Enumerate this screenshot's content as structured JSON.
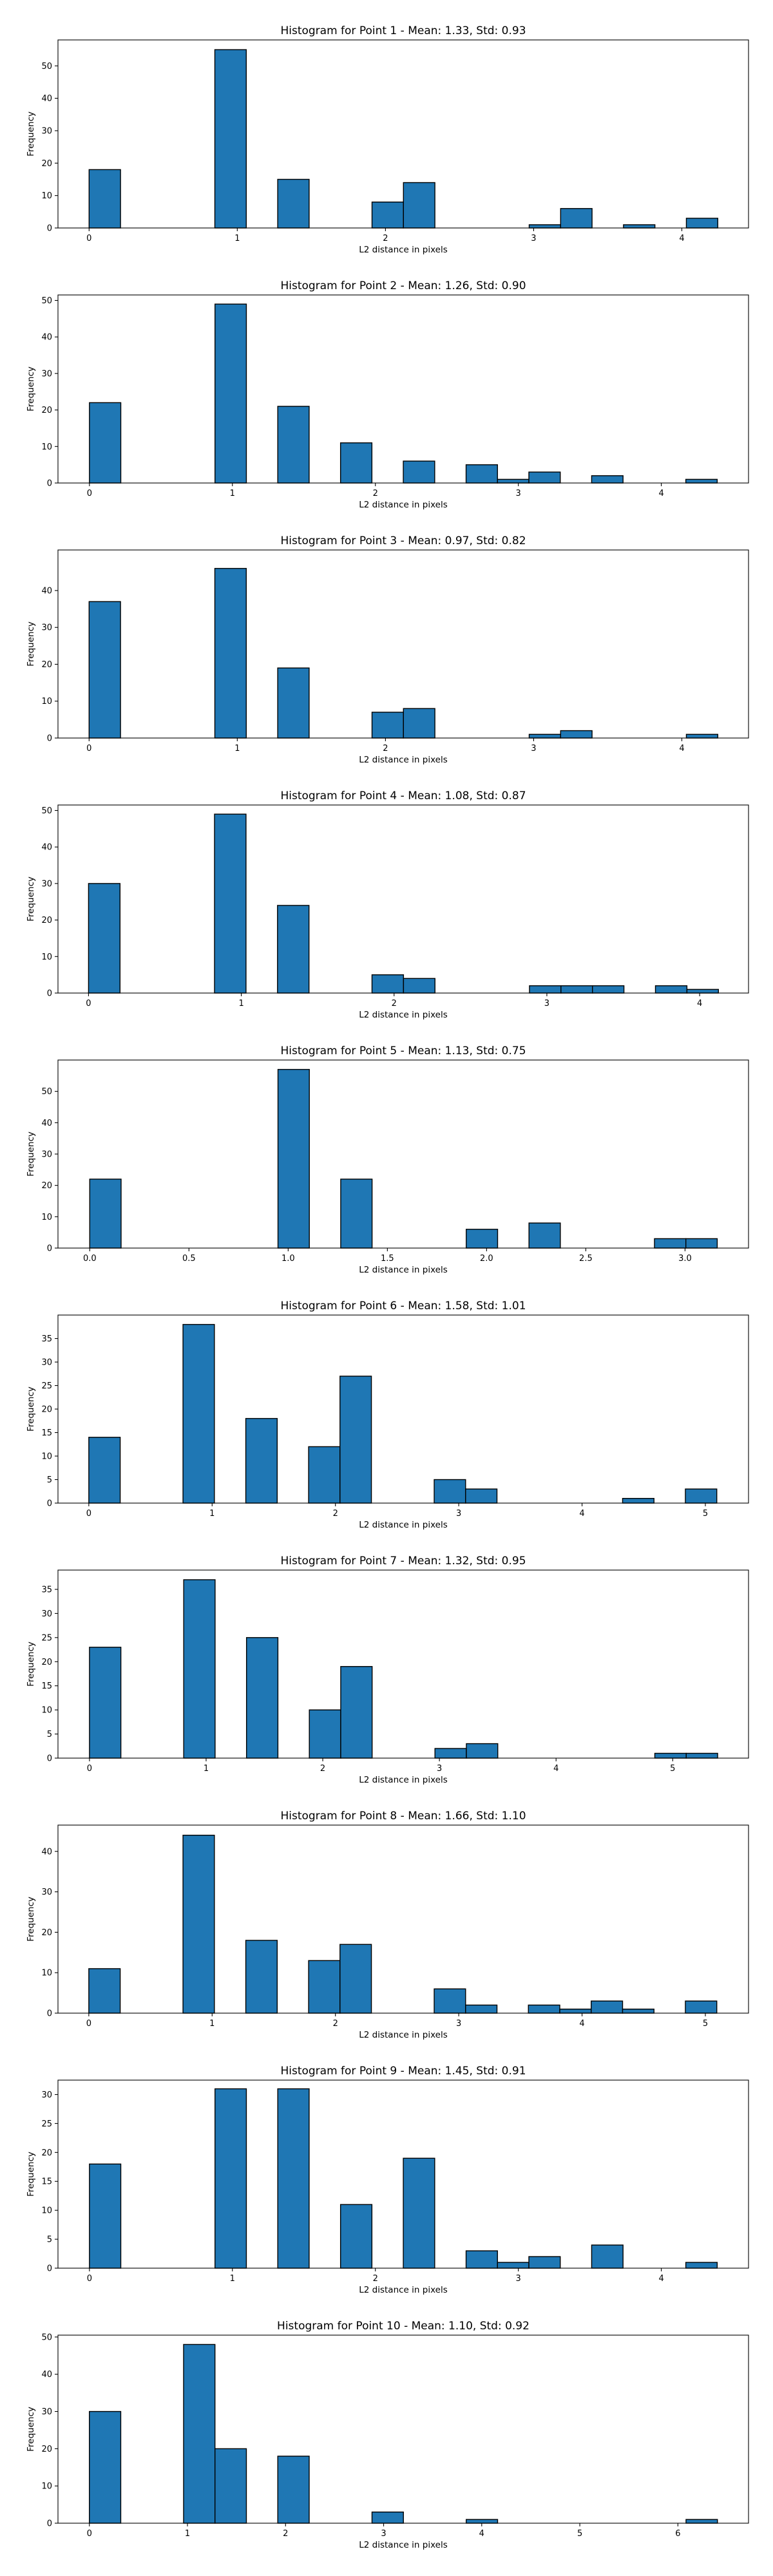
{
  "chart_data": [
    {
      "type": "bar",
      "title": "Histogram for Point 1 - Mean: 1.33, Std: 0.93",
      "xlabel": "L2 distance in pixels",
      "ylabel": "Frequency",
      "xlim": [
        -0.21,
        4.45
      ],
      "ylim": [
        0,
        58
      ],
      "xticks": [
        0,
        1,
        2,
        3,
        4
      ],
      "xtick_labels": [
        "0",
        "1",
        "2",
        "3",
        "4"
      ],
      "yticks": [
        0,
        10,
        20,
        30,
        40,
        50
      ],
      "bin_edges": [
        0,
        0.2121,
        0.4243,
        0.6364,
        0.8485,
        1.0607,
        1.2728,
        1.4849,
        1.6971,
        1.9092,
        2.1213,
        2.3335,
        2.5456,
        2.7577,
        2.9698,
        3.182,
        3.3941,
        3.6062,
        3.8184,
        4.0305,
        4.2426
      ],
      "values": [
        18,
        0,
        0,
        0,
        55,
        0,
        15,
        0,
        0,
        8,
        14,
        0,
        0,
        0,
        1,
        6,
        0,
        1,
        0,
        3
      ]
    },
    {
      "type": "bar",
      "title": "Histogram for Point 2 - Mean: 1.26, Std: 0.90",
      "xlabel": "L2 distance in pixels",
      "ylabel": "Frequency",
      "xlim": [
        -0.22,
        4.61
      ],
      "ylim": [
        0,
        51.5
      ],
      "xticks": [
        0,
        1,
        2,
        3,
        4
      ],
      "xtick_labels": [
        "0",
        "1",
        "2",
        "3",
        "4"
      ],
      "yticks": [
        0,
        10,
        20,
        30,
        40,
        50
      ],
      "bin_edges": [
        0,
        0.2195,
        0.4391,
        0.6586,
        0.8782,
        1.0977,
        1.3173,
        1.5368,
        1.7564,
        1.9759,
        2.1954,
        2.415,
        2.6345,
        2.8541,
        3.0736,
        3.2932,
        3.5127,
        3.7323,
        3.9518,
        4.1714,
        4.3909
      ],
      "values": [
        22,
        0,
        0,
        0,
        49,
        0,
        21,
        0,
        11,
        0,
        6,
        0,
        5,
        1,
        3,
        0,
        2,
        0,
        0,
        1
      ]
    },
    {
      "type": "bar",
      "title": "Histogram for Point 3 - Mean: 0.97, Std: 0.82",
      "xlabel": "L2 distance in pixels",
      "ylabel": "Frequency",
      "xlim": [
        -0.21,
        4.45
      ],
      "ylim": [
        0,
        51
      ],
      "xticks": [
        0,
        1,
        2,
        3,
        4
      ],
      "xtick_labels": [
        "0",
        "1",
        "2",
        "3",
        "4"
      ],
      "yticks": [
        0,
        10,
        20,
        30,
        40
      ],
      "bin_edges": [
        0,
        0.2121,
        0.4243,
        0.6364,
        0.8485,
        1.0607,
        1.2728,
        1.4849,
        1.6971,
        1.9092,
        2.1213,
        2.3335,
        2.5456,
        2.7577,
        2.9698,
        3.182,
        3.3941,
        3.6062,
        3.8184,
        4.0305,
        4.2426
      ],
      "values": [
        37,
        0,
        0,
        0,
        46,
        0,
        19,
        0,
        0,
        7,
        8,
        0,
        0,
        0,
        1,
        2,
        0,
        0,
        0,
        1
      ]
    },
    {
      "type": "bar",
      "title": "Histogram for Point 4 - Mean: 1.08, Std: 0.87",
      "xlabel": "L2 distance in pixels",
      "ylabel": "Frequency",
      "xlim": [
        -0.2,
        4.32
      ],
      "ylim": [
        0,
        51.5
      ],
      "xticks": [
        0,
        1,
        2,
        3,
        4
      ],
      "xtick_labels": [
        "0",
        "1",
        "2",
        "3",
        "4"
      ],
      "yticks": [
        0,
        10,
        20,
        30,
        40,
        50
      ],
      "bin_edges": [
        0,
        0.2062,
        0.4123,
        0.6185,
        0.8246,
        1.0308,
        1.2369,
        1.4431,
        1.6492,
        1.8554,
        2.0616,
        2.2677,
        2.4739,
        2.68,
        2.8862,
        3.0923,
        3.2985,
        3.5046,
        3.7108,
        3.9169,
        4.1231
      ],
      "values": [
        30,
        0,
        0,
        0,
        49,
        0,
        24,
        0,
        0,
        5,
        4,
        0,
        0,
        0,
        2,
        2,
        2,
        0,
        2,
        1
      ]
    },
    {
      "type": "bar",
      "title": "Histogram for Point 5 - Mean: 1.13, Std: 0.75",
      "xlabel": "L2 distance in pixels",
      "ylabel": "Frequency",
      "xlim": [
        -0.16,
        3.32
      ],
      "ylim": [
        0,
        60
      ],
      "xticks": [
        0,
        0.5,
        1,
        1.5,
        2,
        2.5,
        3
      ],
      "xtick_labels": [
        "0.0",
        "0.5",
        "1.0",
        "1.5",
        "2.0",
        "2.5",
        "3.0"
      ],
      "yticks": [
        0,
        10,
        20,
        30,
        40,
        50
      ],
      "bin_edges": [
        0,
        0.1581,
        0.3162,
        0.4743,
        0.6325,
        0.7906,
        0.9487,
        1.1068,
        1.2649,
        1.423,
        1.5811,
        1.7393,
        1.8974,
        2.0555,
        2.2136,
        2.3717,
        2.5298,
        2.6879,
        2.846,
        3.0042,
        3.1623
      ],
      "values": [
        22,
        0,
        0,
        0,
        0,
        0,
        57,
        0,
        22,
        0,
        0,
        0,
        6,
        0,
        8,
        0,
        0,
        0,
        3,
        3
      ]
    },
    {
      "type": "bar",
      "title": "Histogram for Point 6 - Mean: 1.58, Std: 1.01",
      "xlabel": "L2 distance in pixels",
      "ylabel": "Frequency",
      "xlim": [
        -0.25,
        5.35
      ],
      "ylim": [
        0,
        40
      ],
      "xticks": [
        0,
        1,
        2,
        3,
        4,
        5
      ],
      "xtick_labels": [
        "0",
        "1",
        "2",
        "3",
        "4",
        "5"
      ],
      "yticks": [
        0,
        5,
        10,
        15,
        20,
        25,
        30,
        35
      ],
      "bin_edges": [
        0,
        0.2546,
        0.5093,
        0.7639,
        1.0185,
        1.2731,
        1.5278,
        1.7824,
        2.037,
        2.2917,
        2.5463,
        2.8009,
        3.0555,
        3.3102,
        3.5648,
        3.8194,
        4.0741,
        4.3287,
        4.5833,
        4.8379,
        5.0926
      ],
      "values": [
        14,
        0,
        0,
        38,
        0,
        18,
        0,
        12,
        27,
        0,
        0,
        5,
        3,
        0,
        0,
        0,
        0,
        1,
        0,
        3
      ]
    },
    {
      "type": "bar",
      "title": "Histogram for Point 7 - Mean: 1.32, Std: 0.95",
      "xlabel": "L2 distance in pixels",
      "ylabel": "Frequency",
      "xlim": [
        -0.27,
        5.65
      ],
      "ylim": [
        0,
        39
      ],
      "xticks": [
        0,
        1,
        2,
        3,
        4,
        5
      ],
      "xtick_labels": [
        "0",
        "1",
        "2",
        "3",
        "4",
        "5"
      ],
      "yticks": [
        0,
        5,
        10,
        15,
        20,
        25,
        30,
        35
      ],
      "bin_edges": [
        0,
        0.2693,
        0.5385,
        0.8078,
        1.077,
        1.3463,
        1.6155,
        1.8848,
        2.1541,
        2.4233,
        2.6926,
        2.9618,
        3.2311,
        3.5003,
        3.7696,
        4.0389,
        4.3081,
        4.5774,
        4.8466,
        5.1159,
        5.3852
      ],
      "values": [
        23,
        0,
        0,
        37,
        0,
        25,
        0,
        10,
        19,
        0,
        0,
        2,
        3,
        0,
        0,
        0,
        0,
        0,
        1,
        1
      ]
    },
    {
      "type": "bar",
      "title": "Histogram for Point 8 - Mean: 1.66, Std: 1.10",
      "xlabel": "L2 distance in pixels",
      "ylabel": "Frequency",
      "xlim": [
        -0.25,
        5.35
      ],
      "ylim": [
        0,
        46.5
      ],
      "xticks": [
        0,
        1,
        2,
        3,
        4,
        5
      ],
      "xtick_labels": [
        "0",
        "1",
        "2",
        "3",
        "4",
        "5"
      ],
      "yticks": [
        0,
        10,
        20,
        30,
        40
      ],
      "bin_edges": [
        0,
        0.2546,
        0.5093,
        0.7639,
        1.0185,
        1.2731,
        1.5278,
        1.7824,
        2.037,
        2.2917,
        2.5463,
        2.8009,
        3.0555,
        3.3102,
        3.5648,
        3.8194,
        4.0741,
        4.3287,
        4.5833,
        4.8379,
        5.0926
      ],
      "values": [
        11,
        0,
        0,
        44,
        0,
        18,
        0,
        13,
        17,
        0,
        0,
        6,
        2,
        0,
        2,
        1,
        3,
        1,
        0,
        3
      ]
    },
    {
      "type": "bar",
      "title": "Histogram for Point 9 - Mean: 1.45, Std: 0.91",
      "xlabel": "L2 distance in pixels",
      "ylabel": "Frequency",
      "xlim": [
        -0.22,
        4.61
      ],
      "ylim": [
        0,
        32.5
      ],
      "xticks": [
        0,
        1,
        2,
        3,
        4
      ],
      "xtick_labels": [
        "0",
        "1",
        "2",
        "3",
        "4"
      ],
      "yticks": [
        0,
        5,
        10,
        15,
        20,
        25,
        30
      ],
      "bin_edges": [
        0,
        0.2195,
        0.4391,
        0.6586,
        0.8782,
        1.0977,
        1.3173,
        1.5368,
        1.7564,
        1.9759,
        2.1954,
        2.415,
        2.6345,
        2.8541,
        3.0736,
        3.2932,
        3.5127,
        3.7323,
        3.9518,
        4.1714,
        4.3909
      ],
      "values": [
        18,
        0,
        0,
        0,
        31,
        0,
        31,
        0,
        11,
        0,
        19,
        0,
        3,
        1,
        2,
        0,
        4,
        0,
        0,
        1
      ]
    },
    {
      "type": "bar",
      "title": "Histogram for Point 10 - Mean: 1.10, Std: 0.92",
      "xlabel": "L2 distance in pixels",
      "ylabel": "Frequency",
      "xlim": [
        -0.32,
        6.72
      ],
      "ylim": [
        0,
        50.5
      ],
      "xticks": [
        0,
        1,
        2,
        3,
        4,
        5,
        6
      ],
      "xtick_labels": [
        "0",
        "1",
        "2",
        "3",
        "4",
        "5",
        "6"
      ],
      "yticks": [
        0,
        10,
        20,
        30,
        40,
        50
      ],
      "bin_edges": [
        0,
        0.3202,
        0.6403,
        0.9605,
        1.2806,
        1.6008,
        1.9209,
        2.2411,
        2.5612,
        2.8814,
        3.2016,
        3.5217,
        3.8419,
        4.162,
        4.4822,
        4.8023,
        5.1225,
        5.4426,
        5.7628,
        6.0829,
        6.4031
      ],
      "values": [
        30,
        0,
        0,
        48,
        20,
        0,
        18,
        0,
        0,
        3,
        0,
        0,
        1,
        0,
        0,
        0,
        0,
        0,
        0,
        1
      ]
    }
  ]
}
